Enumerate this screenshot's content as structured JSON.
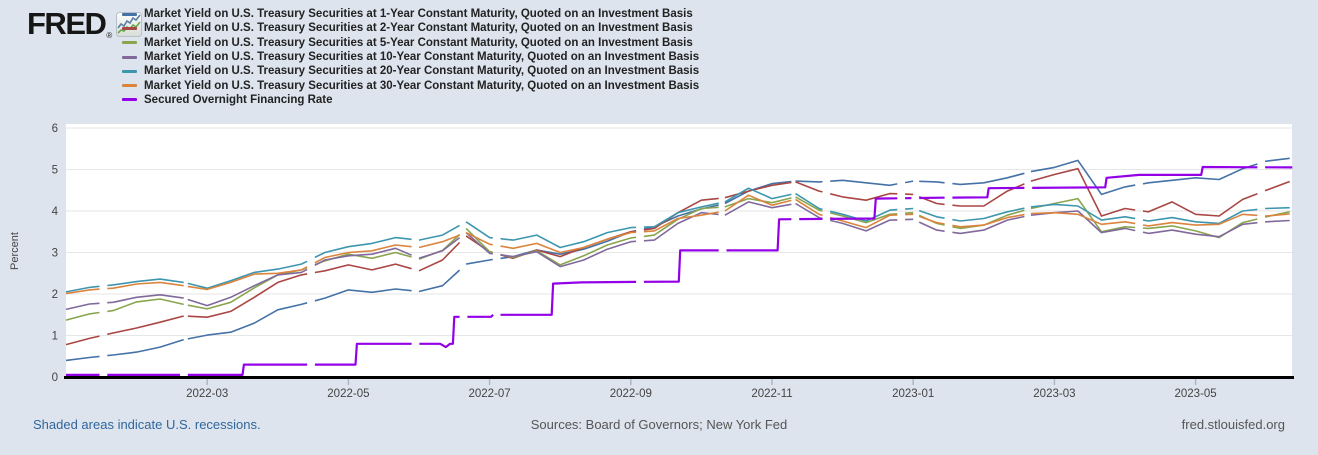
{
  "header": {
    "logo_text": "FRED",
    "registered_mark": "®"
  },
  "footer": {
    "recessions_note": "Shaded areas indicate U.S. recessions.",
    "sources": "Sources: Board of Governors; New York Fed",
    "site": "fred.stlouisfed.org"
  },
  "chart_data": {
    "type": "line",
    "title": "",
    "xlabel": "",
    "ylabel": "Percent",
    "ylim": [
      0,
      6
    ],
    "yticks": [
      "0",
      "1",
      "2",
      "3",
      "4",
      "5",
      "6"
    ],
    "x_unit": "months since 2022-01-01",
    "xlim": [
      0,
      17.37
    ],
    "grid": true,
    "legend_position": "top-left",
    "xticks": [
      {
        "t": 2,
        "label": "2022-03"
      },
      {
        "t": 4,
        "label": "2022-05"
      },
      {
        "t": 6,
        "label": "2022-07"
      },
      {
        "t": 8,
        "label": "2022-09"
      },
      {
        "t": 10,
        "label": "2022-11"
      },
      {
        "t": 12,
        "label": "2023-01"
      },
      {
        "t": 14,
        "label": "2023-03"
      },
      {
        "t": 16,
        "label": "2023-05"
      }
    ],
    "gaps": [
      0.53,
      1.67,
      3.47,
      4.95,
      5.63,
      6.1,
      8.13,
      9.3,
      10.33,
      10.77,
      11.83,
      12.03,
      12.5,
      13.63,
      15.2,
      16.93
    ],
    "series": [
      {
        "id": "1-year",
        "name": "Market Yield on U.S. Treasury Securities at 1-Year Constant Maturity, Quoted on an Investment Basis",
        "color": "#4572a7",
        "t0": 0,
        "dt": 0.33333,
        "values": [
          0.4,
          0.47,
          0.53,
          0.6,
          0.72,
          0.9,
          1.01,
          1.08,
          1.3,
          1.62,
          1.75,
          1.9,
          2.1,
          2.04,
          2.12,
          2.06,
          2.2,
          2.72,
          2.82,
          2.9,
          3.06,
          2.96,
          3.08,
          3.27,
          3.5,
          3.62,
          3.88,
          4.05,
          4.18,
          4.48,
          4.66,
          4.72,
          4.7,
          4.74,
          4.68,
          4.62,
          4.72,
          4.7,
          4.64,
          4.68,
          4.8,
          4.95,
          5.05,
          5.22,
          4.4,
          4.58,
          4.68,
          4.74,
          4.8,
          4.76,
          5.02,
          5.2,
          5.27
        ]
      },
      {
        "id": "2-year",
        "name": "Market Yield on U.S. Treasury Securities at 2-Year Constant Maturity, Quoted on an Investment Basis",
        "color": "#aa4643",
        "t0": 0,
        "dt": 0.33333,
        "values": [
          0.78,
          0.93,
          1.06,
          1.18,
          1.32,
          1.47,
          1.44,
          1.58,
          1.92,
          2.28,
          2.46,
          2.56,
          2.7,
          2.58,
          2.72,
          2.56,
          2.82,
          3.4,
          3.02,
          2.86,
          3.06,
          2.9,
          3.12,
          3.32,
          3.5,
          3.58,
          3.96,
          4.26,
          4.32,
          4.48,
          4.62,
          4.7,
          4.48,
          4.34,
          4.26,
          4.42,
          4.4,
          4.18,
          4.12,
          4.12,
          4.48,
          4.72,
          4.88,
          5.02,
          3.88,
          4.06,
          3.98,
          4.22,
          3.92,
          3.88,
          4.28,
          4.5,
          4.71
        ]
      },
      {
        "id": "5-year",
        "name": "Market Yield on U.S. Treasury Securities at 5-Year Constant Maturity, Quoted on an Investment Basis",
        "color": "#89a54e",
        "t0": 0,
        "dt": 0.33333,
        "values": [
          1.37,
          1.52,
          1.6,
          1.81,
          1.88,
          1.75,
          1.64,
          1.8,
          2.15,
          2.46,
          2.58,
          2.8,
          2.96,
          2.86,
          3.0,
          2.84,
          3.05,
          3.58,
          3.02,
          2.88,
          3.04,
          2.7,
          2.92,
          3.18,
          3.35,
          3.42,
          3.8,
          4.06,
          4.1,
          4.3,
          4.2,
          4.34,
          4.02,
          3.88,
          3.72,
          3.92,
          3.96,
          3.7,
          3.58,
          3.66,
          3.9,
          4.06,
          4.18,
          4.3,
          3.5,
          3.62,
          3.58,
          3.64,
          3.52,
          3.36,
          3.72,
          3.86,
          3.98
        ]
      },
      {
        "id": "10-year",
        "name": "Market Yield on U.S. Treasury Securities at 10-Year Constant Maturity, Quoted on an Investment Basis",
        "color": "#80699b",
        "t0": 0,
        "dt": 0.33333,
        "values": [
          1.63,
          1.76,
          1.8,
          1.92,
          1.98,
          1.9,
          1.72,
          1.92,
          2.2,
          2.46,
          2.52,
          2.82,
          2.92,
          2.96,
          3.1,
          2.86,
          3.04,
          3.48,
          2.98,
          2.9,
          3.02,
          2.66,
          2.82,
          3.08,
          3.26,
          3.3,
          3.7,
          3.96,
          3.9,
          4.22,
          4.08,
          4.18,
          3.84,
          3.7,
          3.52,
          3.78,
          3.8,
          3.54,
          3.46,
          3.54,
          3.78,
          3.9,
          3.96,
          4.0,
          3.48,
          3.58,
          3.46,
          3.54,
          3.44,
          3.38,
          3.68,
          3.74,
          3.77
        ]
      },
      {
        "id": "20-year",
        "name": "Market Yield on U.S. Treasury Securities at 20-Year Constant Maturity, Quoted on an Investment Basis",
        "color": "#3d96ae",
        "t0": 0,
        "dt": 0.33333,
        "values": [
          2.05,
          2.16,
          2.22,
          2.3,
          2.36,
          2.28,
          2.14,
          2.32,
          2.52,
          2.6,
          2.72,
          3.0,
          3.14,
          3.22,
          3.36,
          3.3,
          3.42,
          3.74,
          3.36,
          3.3,
          3.42,
          3.12,
          3.26,
          3.48,
          3.6,
          3.62,
          3.96,
          4.1,
          4.22,
          4.55,
          4.3,
          4.42,
          4.06,
          3.92,
          3.76,
          4.02,
          4.06,
          3.86,
          3.76,
          3.82,
          3.98,
          4.1,
          4.16,
          4.12,
          3.78,
          3.86,
          3.76,
          3.84,
          3.74,
          3.7,
          4.0,
          4.06,
          4.08
        ]
      },
      {
        "id": "30-year",
        "name": "Market Yield on U.S. Treasury Securities at 30-Year Constant Maturity, Quoted on an Investment Basis",
        "color": "#db843d",
        "t0": 0,
        "dt": 0.33333,
        "values": [
          2.01,
          2.1,
          2.14,
          2.24,
          2.28,
          2.2,
          2.11,
          2.28,
          2.48,
          2.5,
          2.58,
          2.88,
          3.0,
          3.04,
          3.18,
          3.12,
          3.26,
          3.48,
          3.2,
          3.1,
          3.22,
          3.0,
          3.12,
          3.32,
          3.48,
          3.52,
          3.82,
          3.9,
          4.0,
          4.38,
          4.14,
          4.28,
          3.92,
          3.76,
          3.6,
          3.9,
          3.92,
          3.72,
          3.62,
          3.66,
          3.84,
          3.94,
          3.96,
          3.92,
          3.68,
          3.74,
          3.64,
          3.72,
          3.66,
          3.68,
          3.92,
          3.88,
          3.93
        ]
      },
      {
        "id": "sofr",
        "name": "Secured Overnight Financing Rate",
        "color": "#9300e8",
        "width": 2.2,
        "points": [
          [
            0,
            0.05
          ],
          [
            2.5,
            0.05
          ],
          [
            2.52,
            0.3
          ],
          [
            4.1,
            0.3
          ],
          [
            4.12,
            0.8
          ],
          [
            5.3,
            0.8
          ],
          [
            5.38,
            0.72
          ],
          [
            5.44,
            0.8
          ],
          [
            5.48,
            0.8
          ],
          [
            5.5,
            1.45
          ],
          [
            6.02,
            1.45
          ],
          [
            6.05,
            1.5
          ],
          [
            6.88,
            1.5
          ],
          [
            6.9,
            2.25
          ],
          [
            7.3,
            2.28
          ],
          [
            8.68,
            2.3
          ],
          [
            8.7,
            3.05
          ],
          [
            10.08,
            3.05
          ],
          [
            10.1,
            3.8
          ],
          [
            11.45,
            3.82
          ],
          [
            11.47,
            4.3
          ],
          [
            12.4,
            4.32
          ],
          [
            13.05,
            4.33
          ],
          [
            13.07,
            4.55
          ],
          [
            14.72,
            4.57
          ],
          [
            14.74,
            4.8
          ],
          [
            15.2,
            4.87
          ],
          [
            16.08,
            4.87
          ],
          [
            16.1,
            5.06
          ],
          [
            17.37,
            5.05
          ]
        ]
      }
    ]
  }
}
